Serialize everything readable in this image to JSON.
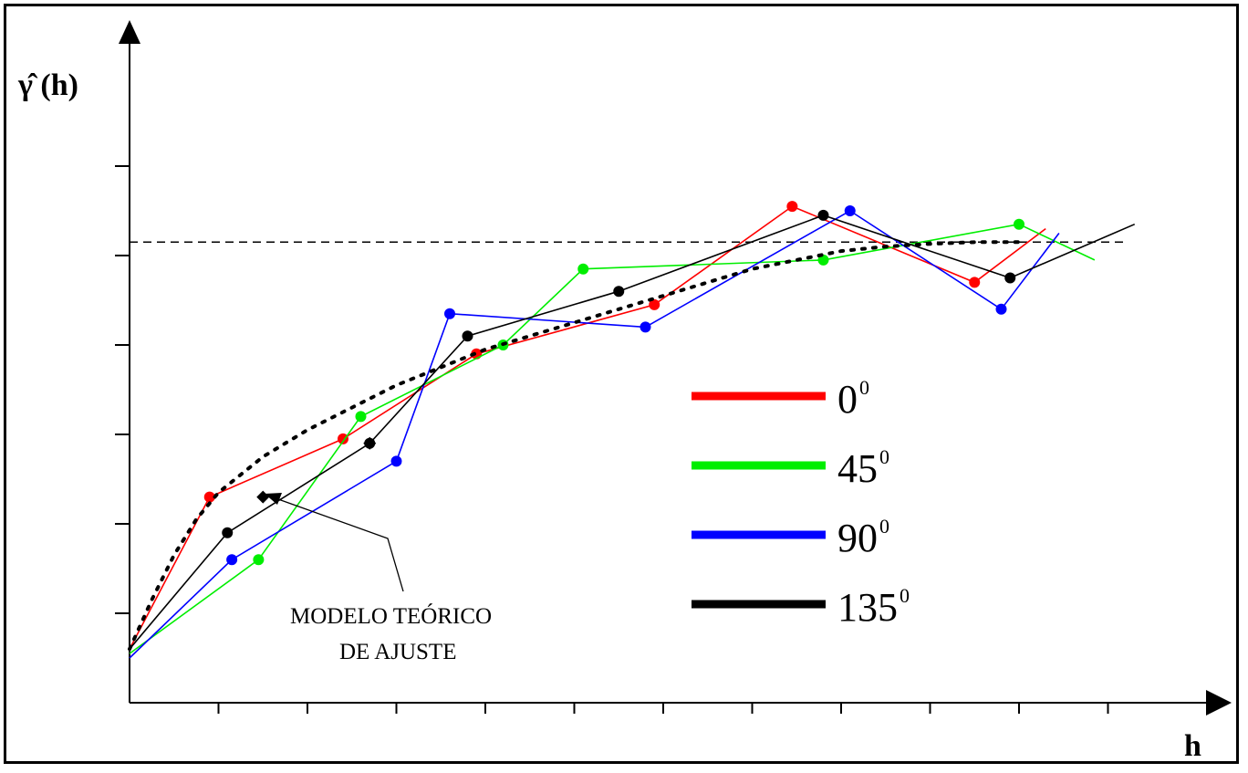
{
  "chart_data": {
    "type": "line",
    "title": "",
    "ylabel": "γ̂ (h)",
    "xlabel": "h",
    "xlim": [
      0,
      11.3
    ],
    "ylim": [
      0,
      6.9
    ],
    "grid": false,
    "legend_placement": "center-right",
    "sill": 5.15,
    "series": [
      {
        "name": "0",
        "degree_mark": "0",
        "color": "#ff0000",
        "x": [
          0.0,
          0.9,
          2.4,
          3.9,
          5.9,
          7.45,
          9.5,
          10.3
        ],
        "y": [
          0.6,
          2.3,
          2.95,
          3.9,
          4.45,
          5.55,
          4.7,
          5.3
        ]
      },
      {
        "name": "45",
        "degree_mark": "0",
        "color": "#00ee00",
        "x": [
          0.0,
          1.45,
          2.6,
          4.2,
          5.1,
          7.8,
          10.0,
          10.85
        ],
        "y": [
          0.55,
          1.6,
          3.2,
          4.0,
          4.85,
          4.95,
          5.35,
          4.95
        ]
      },
      {
        "name": "90",
        "degree_mark": "0",
        "color": "#0000ff",
        "x": [
          0.0,
          1.15,
          3.0,
          3.6,
          5.8,
          8.1,
          9.8,
          10.45
        ],
        "y": [
          0.5,
          1.6,
          2.7,
          4.35,
          4.2,
          5.5,
          4.4,
          5.25
        ]
      },
      {
        "name": "135",
        "degree_mark": "0",
        "color": "#000000",
        "x": [
          0.0,
          1.1,
          2.7,
          3.8,
          5.5,
          7.8,
          9.9,
          11.3
        ],
        "y": [
          0.6,
          1.9,
          2.9,
          4.1,
          4.6,
          5.45,
          4.75,
          5.35
        ]
      }
    ],
    "theoretical_model": {
      "x": [
        0.0,
        0.25,
        0.5,
        0.75,
        1.0,
        1.5,
        2.0,
        2.5,
        3.0,
        3.5,
        4.0,
        4.5,
        5.0,
        5.5,
        6.0,
        6.5,
        7.0,
        7.5,
        8.0,
        8.5,
        9.0,
        9.5,
        10.0
      ],
      "y": [
        0.6,
        1.15,
        1.65,
        2.05,
        2.35,
        2.75,
        3.05,
        3.3,
        3.55,
        3.75,
        3.95,
        4.1,
        4.25,
        4.4,
        4.55,
        4.7,
        4.85,
        4.95,
        5.05,
        5.1,
        5.13,
        5.15,
        5.15
      ],
      "markers": [
        {
          "x": 1.5,
          "y": 2.3
        },
        {
          "x": 2.7,
          "y": 2.9
        }
      ]
    },
    "annotations": [
      {
        "text_lines": [
          "MODELO TEÓRICO",
          "DE AJUSTE"
        ]
      }
    ]
  }
}
